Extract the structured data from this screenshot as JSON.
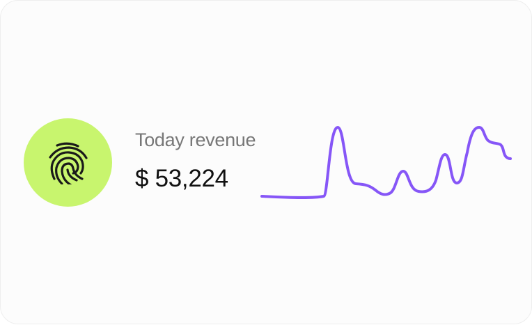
{
  "card": {
    "title": "Today revenue",
    "value": "$ 53,224",
    "icon": "fingerprint-icon",
    "colors": {
      "badge": "#c8f56e",
      "line": "#8656f7"
    }
  }
}
